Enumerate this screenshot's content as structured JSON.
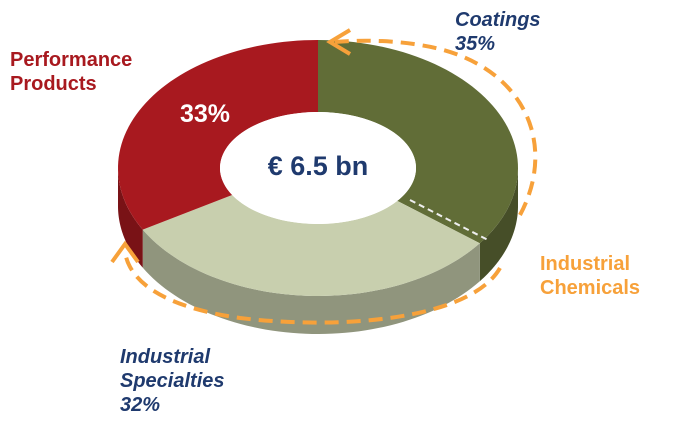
{
  "chart_data": {
    "type": "donut3d",
    "categories": [
      "Coatings",
      "Industrial Specialties",
      "Performance Products"
    ],
    "values": [
      35,
      32,
      33
    ],
    "value_labels": [
      "35%",
      "32%",
      "33%"
    ],
    "colors": [
      "#616d37",
      "#c8cfae",
      "#a8191f"
    ],
    "center_label": "€ 6.5 bn",
    "annotation": "Industrial Chemicals"
  }
}
